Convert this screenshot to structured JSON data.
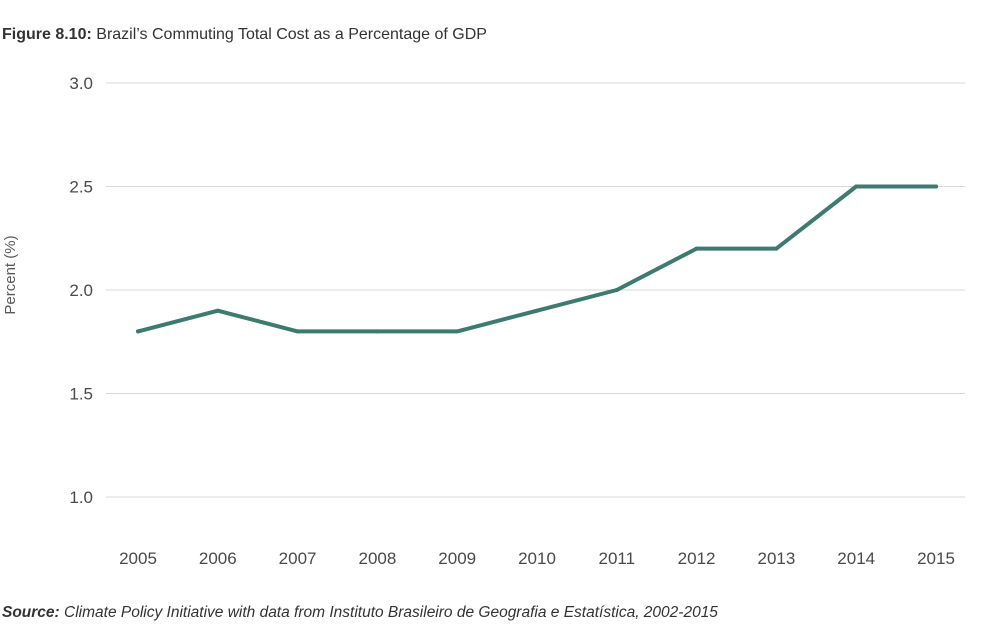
{
  "figure": {
    "number": "Figure 8.10:",
    "title": "Brazil’s Commuting Total Cost as a Percentage of GDP"
  },
  "source": {
    "label": "Source:",
    "text": "Climate Policy Initiative with data from Instituto Brasileiro de Geografia e Estatística, 2002-2015"
  },
  "colors": {
    "line": "#3d7a6f",
    "grid": "#d9d9d9"
  },
  "chart_data": {
    "type": "line",
    "title": "Brazil’s Commuting Total Cost as a Percentage of GDP",
    "xlabel": "",
    "ylabel": "Percent (%)",
    "x": [
      "2005",
      "2006",
      "2007",
      "2008",
      "2009",
      "2010",
      "2011",
      "2012",
      "2013",
      "2014",
      "2015"
    ],
    "series": [
      {
        "values": [
          1.8,
          1.9,
          1.8,
          1.8,
          1.8,
          1.9,
          2.0,
          2.2,
          2.2,
          2.5,
          2.5
        ]
      }
    ],
    "ylim": [
      1.0,
      3.0
    ],
    "yticks": [
      "1.0",
      "1.5",
      "2.0",
      "2.5",
      "3.0"
    ],
    "grid": true,
    "legend": "none"
  }
}
